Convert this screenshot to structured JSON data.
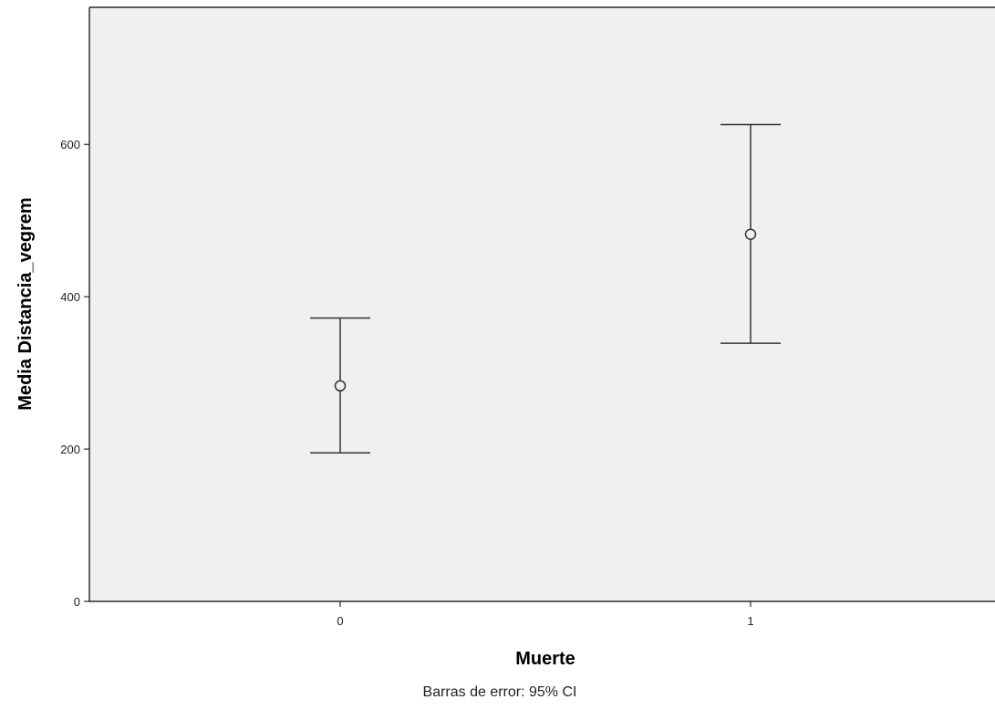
{
  "chart_data": {
    "type": "errorbar",
    "title": "",
    "xlabel": "Muerte",
    "ylabel": "Media Distancia_vegrem",
    "footnote": "Barras de error: 95% CI",
    "categories": [
      "0",
      "1"
    ],
    "series": [
      {
        "values": [
          283,
          482
        ],
        "ci_lower": [
          195,
          339
        ],
        "ci_upper": [
          372,
          626
        ]
      }
    ],
    "ylim": [
      0,
      780
    ],
    "yticks": [
      0,
      200,
      400,
      600
    ],
    "grid": false,
    "legend": "none",
    "colors": {
      "plot_background": "#f0f0f0",
      "marks": "#333333",
      "axis": "#000000"
    }
  }
}
